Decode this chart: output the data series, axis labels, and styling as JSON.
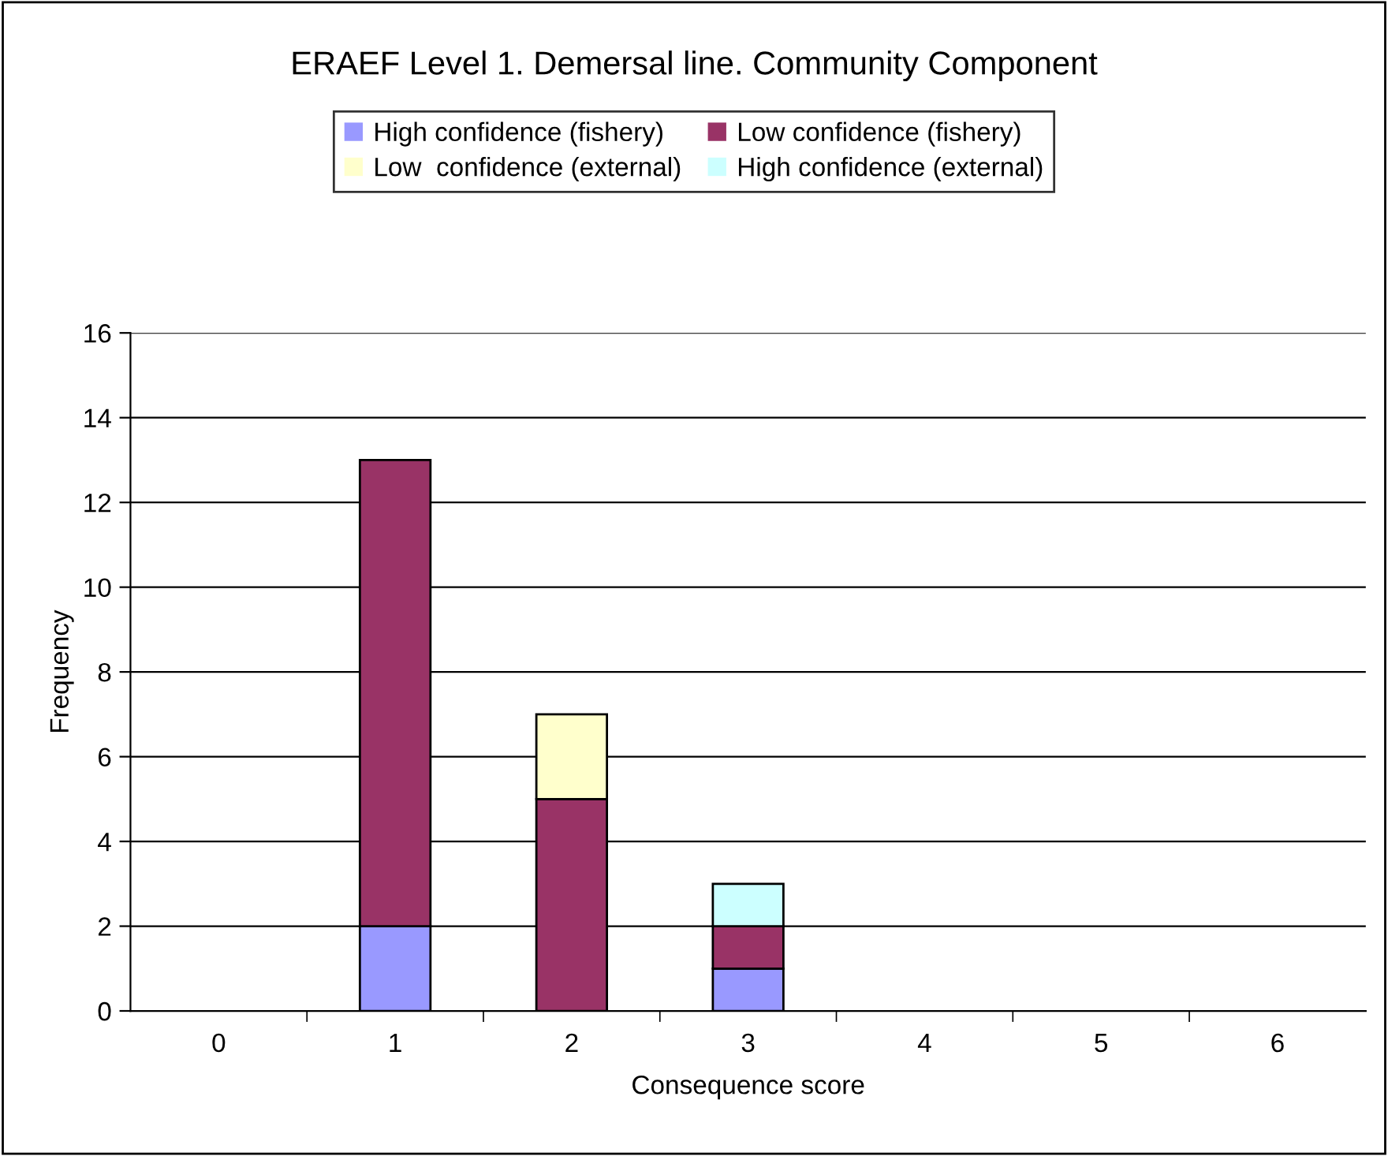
{
  "chart_data": {
    "type": "bar",
    "title": "ERAEF Level 1. Demersal line. Community Component",
    "xlabel": "Consequence score",
    "ylabel": "Frequency",
    "categories": [
      "0",
      "1",
      "2",
      "3",
      "4",
      "5",
      "6"
    ],
    "stacked": true,
    "series": [
      {
        "name": "High confidence (fishery)",
        "color": "#9999ff",
        "values": [
          0,
          2,
          0,
          1,
          0,
          0,
          0
        ]
      },
      {
        "name": "Low confidence (fishery)",
        "color": "#993366",
        "values": [
          0,
          11,
          5,
          1,
          0,
          0,
          0
        ]
      },
      {
        "name": "Low  confidence (external)",
        "color": "#ffffcc",
        "values": [
          0,
          0,
          2,
          0,
          0,
          0,
          0
        ]
      },
      {
        "name": "High confidence (external)",
        "color": "#ccffff",
        "values": [
          0,
          0,
          0,
          1,
          0,
          0,
          0
        ]
      }
    ],
    "ylim": [
      0,
      16
    ],
    "yticks": [
      0,
      2,
      4,
      6,
      8,
      10,
      12,
      14,
      16
    ],
    "grid": "y",
    "legend": "top"
  }
}
